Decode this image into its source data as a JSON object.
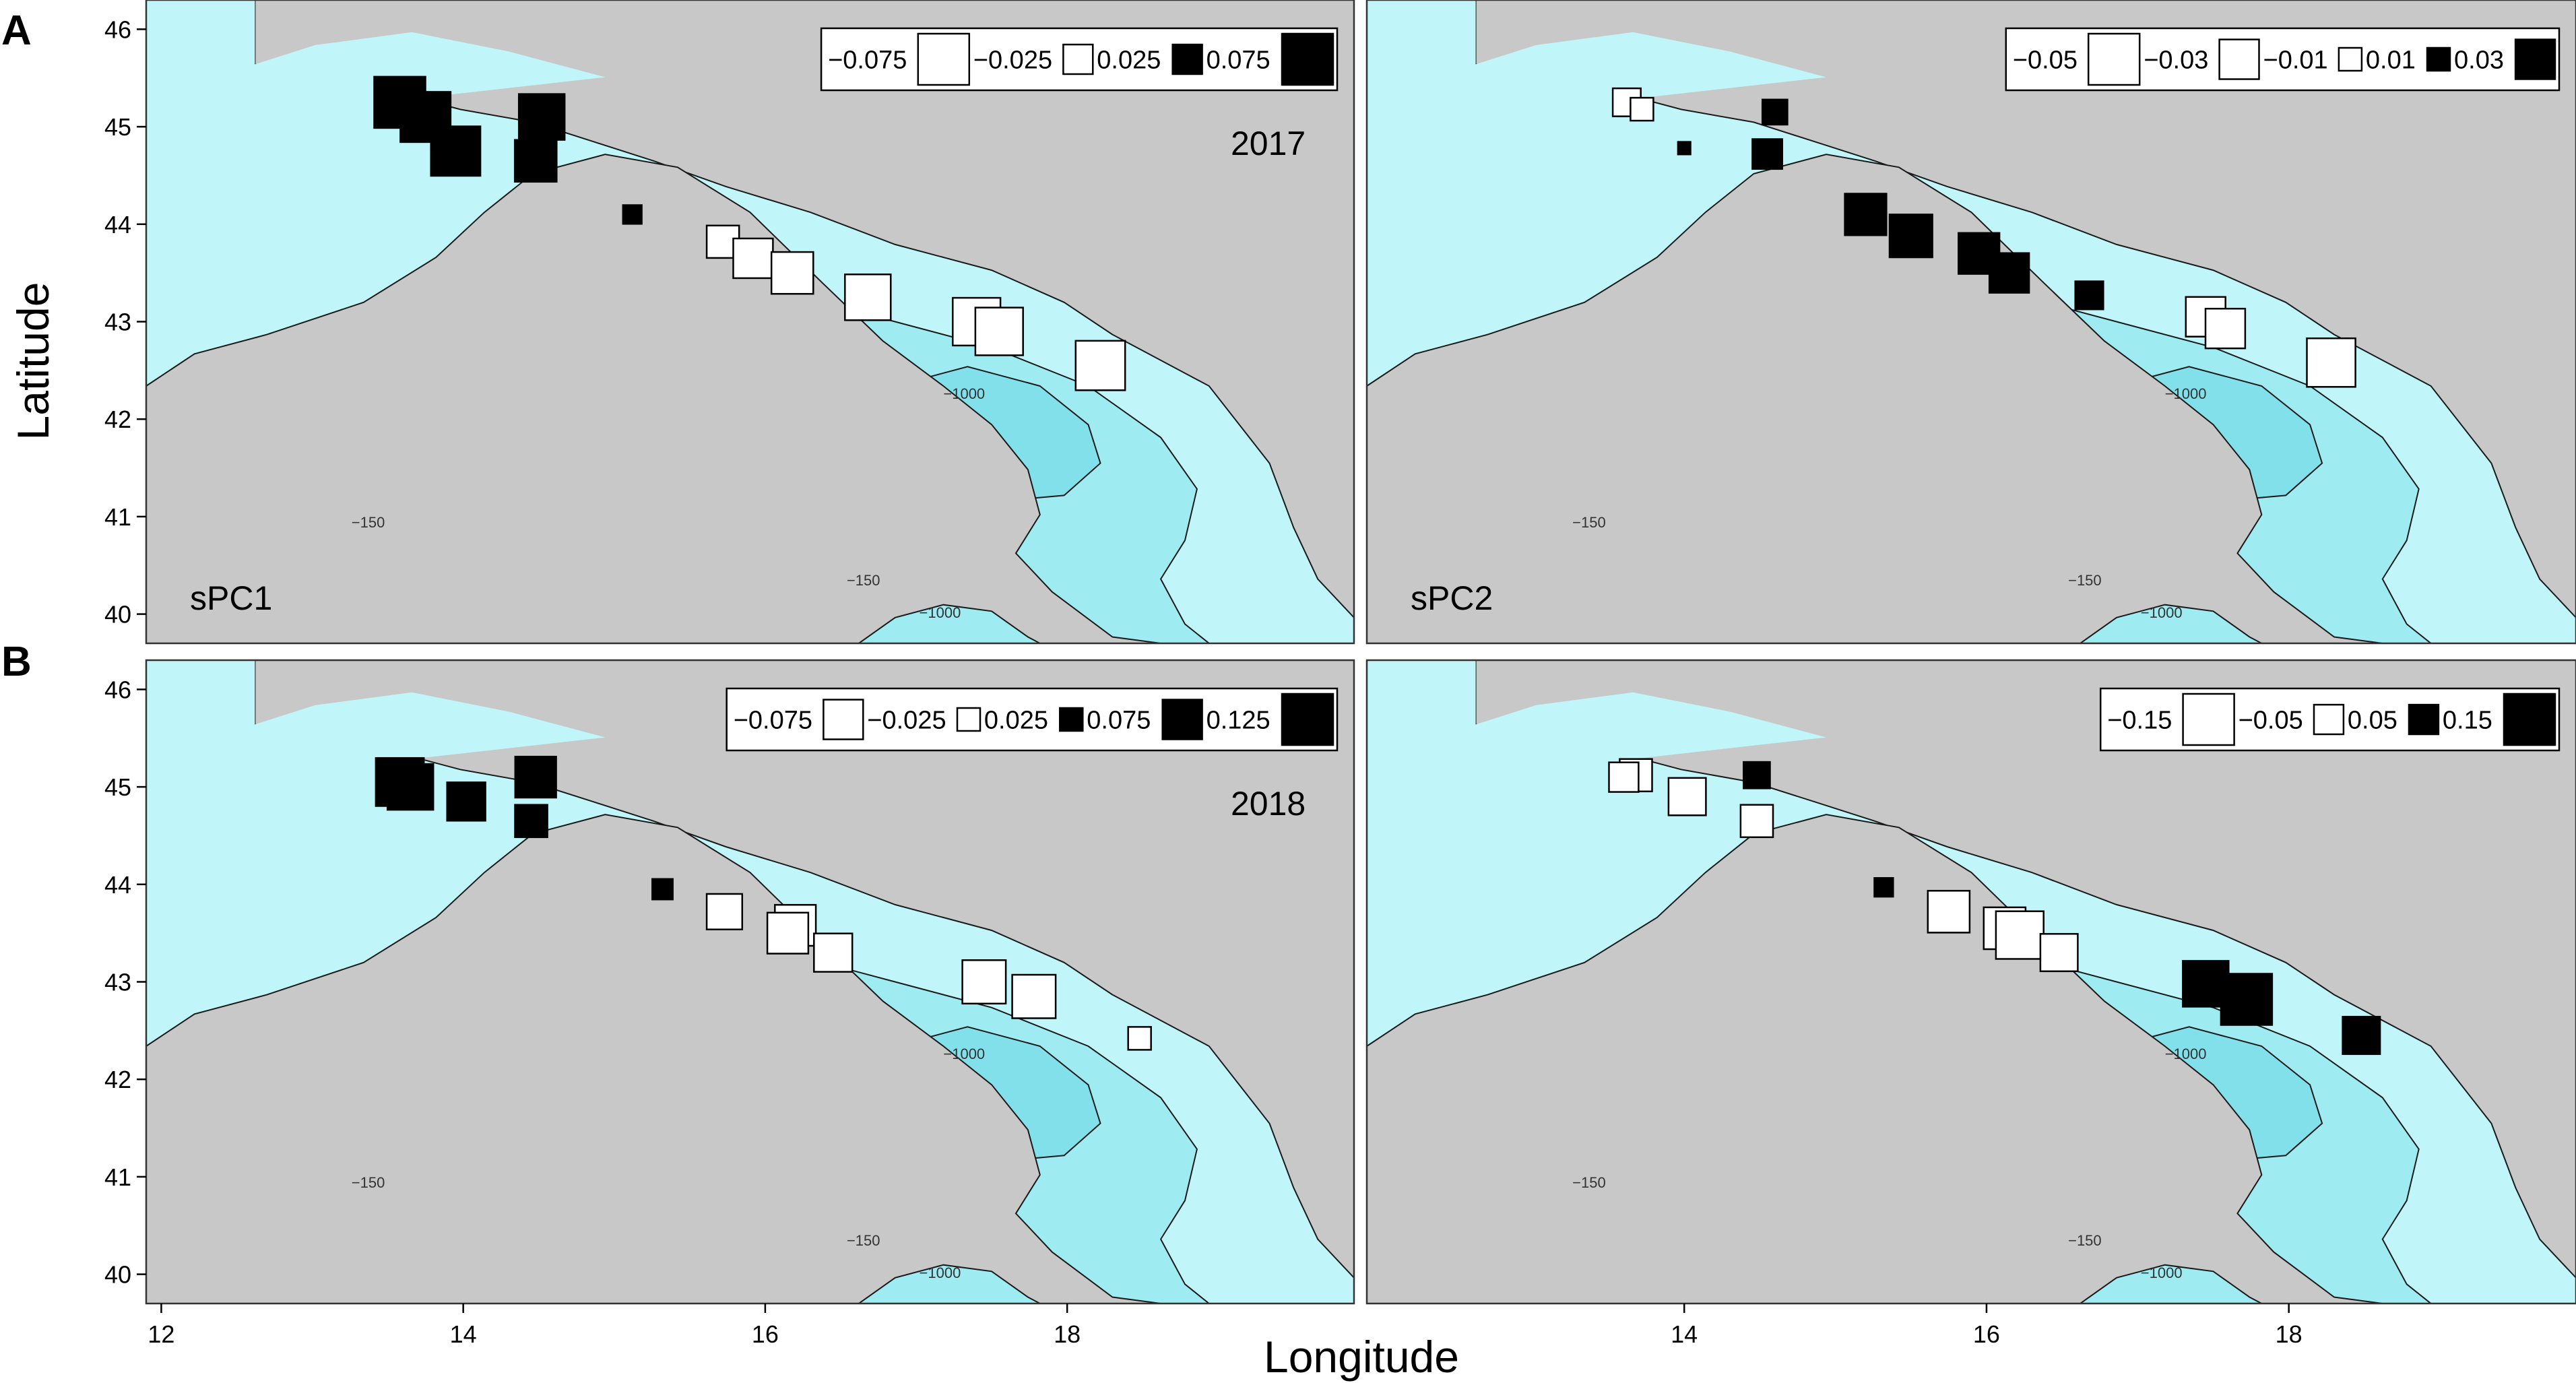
{
  "figure": {
    "panel_letters": [
      "A",
      "B"
    ],
    "y_axis_label": "Latitude",
    "x_axis_label": "Longitude"
  },
  "axes": {
    "lat_ticks": [
      40,
      41,
      42,
      43,
      44,
      45,
      46
    ],
    "lon_ticks_left": [
      12,
      14,
      16,
      18
    ],
    "lon_ticks_right": [
      14,
      16,
      18
    ],
    "lon_range": [
      11.9,
      19.9
    ],
    "lat_range": [
      39.7,
      46.3
    ]
  },
  "contour_labels": {
    "c150": "−150",
    "c1000": "−1000"
  },
  "colors": {
    "land": "#c8c8c8",
    "shelf": "#c0f6fa",
    "mid": "#9eebf2",
    "deep": "#82e0ea",
    "marker_pos": "#000000",
    "marker_neg": "#ffffff",
    "stroke": "#000000"
  },
  "panels": [
    {
      "id": "A1",
      "year_label": "2017",
      "component_label": "sPC1",
      "legend": [
        {
          "label": "−0.075",
          "value": -0.075
        },
        {
          "label": "−0.025",
          "value": -0.025
        },
        {
          "label": "0.025",
          "value": 0.025
        },
        {
          "label": "0.075",
          "value": 0.075
        }
      ],
      "points": [
        {
          "lon": 13.58,
          "lat": 45.25,
          "value": 0.075
        },
        {
          "lon": 13.75,
          "lat": 45.1,
          "value": 0.072
        },
        {
          "lon": 13.95,
          "lat": 44.75,
          "value": 0.07
        },
        {
          "lon": 14.52,
          "lat": 45.1,
          "value": 0.06
        },
        {
          "lon": 14.48,
          "lat": 44.65,
          "value": 0.05
        },
        {
          "lon": 15.12,
          "lat": 44.1,
          "value": 0.01
        },
        {
          "lon": 15.72,
          "lat": 43.82,
          "value": -0.03
        },
        {
          "lon": 15.92,
          "lat": 43.65,
          "value": -0.045
        },
        {
          "lon": 16.18,
          "lat": 43.5,
          "value": -0.05
        },
        {
          "lon": 16.68,
          "lat": 43.25,
          "value": -0.06
        },
        {
          "lon": 17.4,
          "lat": 43.0,
          "value": -0.065
        },
        {
          "lon": 17.55,
          "lat": 42.9,
          "value": -0.065
        },
        {
          "lon": 18.22,
          "lat": 42.55,
          "value": -0.07
        }
      ]
    },
    {
      "id": "A2",
      "year_label": "",
      "component_label": "sPC2",
      "legend": [
        {
          "label": "−0.05",
          "value": -0.05
        },
        {
          "label": "−0.03",
          "value": -0.03
        },
        {
          "label": "−0.01",
          "value": -0.01
        },
        {
          "label": "0.01",
          "value": 0.01
        },
        {
          "label": "0.03",
          "value": 0.03
        }
      ],
      "points": [
        {
          "lon": 13.62,
          "lat": 45.25,
          "value": -0.015
        },
        {
          "lon": 13.72,
          "lat": 45.18,
          "value": -0.01
        },
        {
          "lon": 14.0,
          "lat": 44.78,
          "value": 0.003
        },
        {
          "lon": 14.6,
          "lat": 45.15,
          "value": 0.012
        },
        {
          "lon": 14.55,
          "lat": 44.72,
          "value": 0.017
        },
        {
          "lon": 15.2,
          "lat": 44.1,
          "value": 0.033
        },
        {
          "lon": 15.5,
          "lat": 43.88,
          "value": 0.035
        },
        {
          "lon": 15.95,
          "lat": 43.7,
          "value": 0.032
        },
        {
          "lon": 16.15,
          "lat": 43.5,
          "value": 0.03
        },
        {
          "lon": 16.68,
          "lat": 43.27,
          "value": 0.015
        },
        {
          "lon": 17.45,
          "lat": 43.05,
          "value": -0.03
        },
        {
          "lon": 17.58,
          "lat": 42.93,
          "value": -0.03
        },
        {
          "lon": 18.28,
          "lat": 42.58,
          "value": -0.045
        }
      ]
    },
    {
      "id": "B1",
      "year_label": "2018",
      "component_label": "",
      "legend": [
        {
          "label": "−0.075",
          "value": -0.075
        },
        {
          "label": "−0.025",
          "value": -0.025
        },
        {
          "label": "0.025",
          "value": 0.025
        },
        {
          "label": "0.075",
          "value": 0.075
        },
        {
          "label": "0.125",
          "value": 0.125
        }
      ],
      "points": [
        {
          "lon": 13.58,
          "lat": 45.05,
          "value": 0.11
        },
        {
          "lon": 13.65,
          "lat": 45.0,
          "value": 0.1
        },
        {
          "lon": 14.02,
          "lat": 44.85,
          "value": 0.07
        },
        {
          "lon": 14.48,
          "lat": 45.1,
          "value": 0.08
        },
        {
          "lon": 14.45,
          "lat": 44.65,
          "value": 0.05
        },
        {
          "lon": 15.32,
          "lat": 43.95,
          "value": 0.02
        },
        {
          "lon": 15.73,
          "lat": 43.72,
          "value": -0.06
        },
        {
          "lon": 16.2,
          "lat": 43.58,
          "value": -0.08
        },
        {
          "lon": 16.15,
          "lat": 43.5,
          "value": -0.08
        },
        {
          "lon": 16.45,
          "lat": 43.3,
          "value": -0.07
        },
        {
          "lon": 17.45,
          "lat": 43.0,
          "value": -0.09
        },
        {
          "lon": 17.78,
          "lat": 42.85,
          "value": -0.09
        },
        {
          "lon": 18.48,
          "lat": 42.42,
          "value": -0.025
        }
      ]
    },
    {
      "id": "B2",
      "year_label": "",
      "component_label": "",
      "legend": [
        {
          "label": "−0.15",
          "value": -0.15
        },
        {
          "label": "−0.05",
          "value": -0.05
        },
        {
          "label": "0.05",
          "value": 0.05
        },
        {
          "label": "0.15",
          "value": 0.15
        }
      ],
      "points": [
        {
          "lon": 13.68,
          "lat": 45.12,
          "value": -0.06
        },
        {
          "lon": 13.6,
          "lat": 45.1,
          "value": -0.05
        },
        {
          "lon": 14.02,
          "lat": 44.9,
          "value": -0.08
        },
        {
          "lon": 14.48,
          "lat": 45.12,
          "value": 0.04
        },
        {
          "lon": 14.48,
          "lat": 44.65,
          "value": -0.06
        },
        {
          "lon": 15.32,
          "lat": 43.97,
          "value": 0.02
        },
        {
          "lon": 15.75,
          "lat": 43.72,
          "value": -0.1
        },
        {
          "lon": 16.12,
          "lat": 43.55,
          "value": -0.1
        },
        {
          "lon": 16.22,
          "lat": 43.48,
          "value": -0.13
        },
        {
          "lon": 16.48,
          "lat": 43.3,
          "value": -0.08
        },
        {
          "lon": 17.45,
          "lat": 42.98,
          "value": 0.12
        },
        {
          "lon": 17.72,
          "lat": 42.82,
          "value": 0.15
        },
        {
          "lon": 18.48,
          "lat": 42.45,
          "value": 0.08
        }
      ]
    }
  ]
}
